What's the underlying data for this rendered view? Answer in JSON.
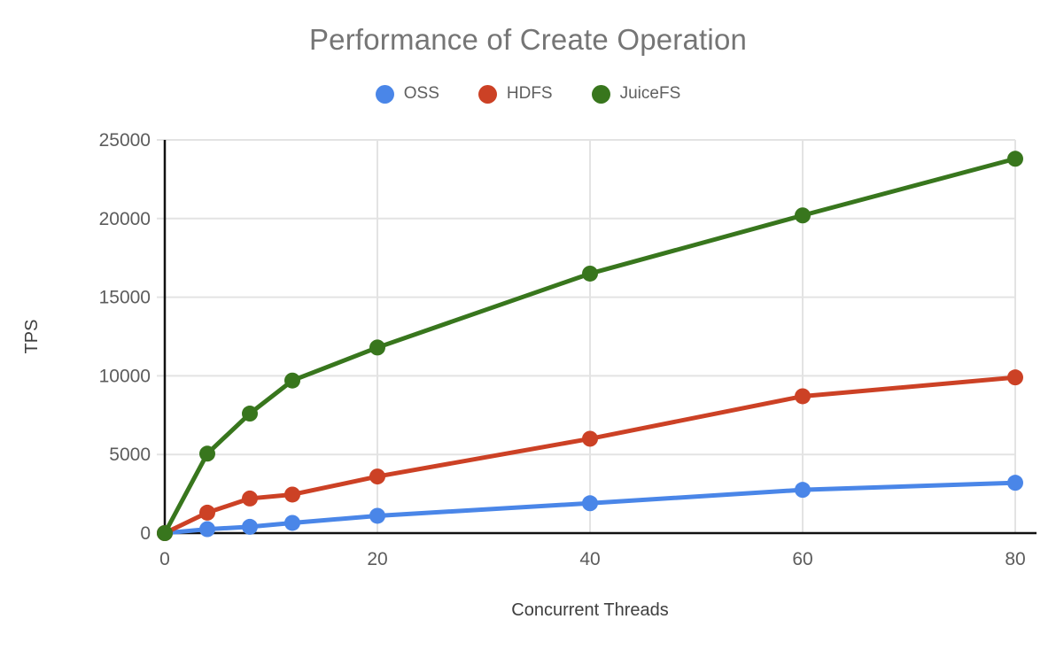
{
  "chart_data": {
    "type": "line",
    "title": "Performance of Create Operation",
    "xlabel": "Concurrent Threads",
    "ylabel": "TPS",
    "x": [
      0,
      4,
      8,
      12,
      20,
      40,
      60,
      80
    ],
    "series": [
      {
        "name": "OSS",
        "color": "#4a86e8",
        "values": [
          0,
          250,
          400,
          650,
          1100,
          1900,
          2750,
          3200
        ]
      },
      {
        "name": "HDFS",
        "color": "#cc4125",
        "values": [
          0,
          1300,
          2200,
          2450,
          3600,
          6000,
          8700,
          9900
        ]
      },
      {
        "name": "JuiceFS",
        "color": "#38761d",
        "values": [
          0,
          5050,
          7600,
          9700,
          11800,
          16500,
          20200,
          23800
        ]
      }
    ],
    "xlim": [
      0,
      80
    ],
    "ylim": [
      0,
      25000
    ],
    "x_ticks": [
      0,
      20,
      40,
      60,
      80
    ],
    "y_ticks": [
      0,
      5000,
      10000,
      15000,
      20000,
      25000
    ],
    "grid": true,
    "legend_position": "top",
    "marker": "circle",
    "colors": {
      "background": "#ffffff",
      "grid": "#e3e3e3",
      "axis": "#111111",
      "tick_text": "#5c5c5c",
      "axis_title_text": "#3f3f3f",
      "title_text": "#757575"
    }
  }
}
